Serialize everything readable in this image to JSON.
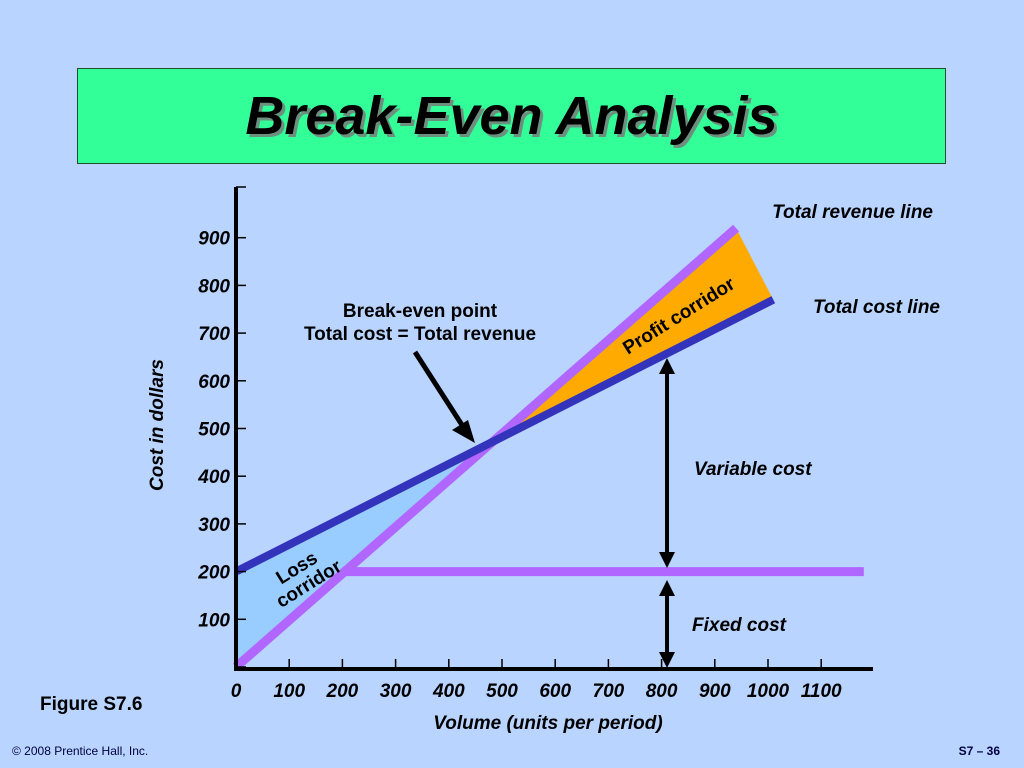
{
  "slide": {
    "title": "Break-Even Analysis",
    "figure_label": "Figure S7.6",
    "copyright": "© 2008 Prentice Hall, Inc.",
    "page_number": "S7 – 36"
  },
  "colors": {
    "background": "#b9d4ff",
    "title_fill": "#33ff99",
    "revenue_line": "#b066ff",
    "cost_line": "#3333bb",
    "fixed_cost_line": "#b066ff",
    "profit_fill": "#ffaa00",
    "loss_fill": "#99ccff"
  },
  "chart_data": {
    "type": "line",
    "xlabel": "Volume (units per period)",
    "ylabel": "Cost in dollars",
    "xlim": [
      0,
      1200
    ],
    "ylim": [
      0,
      1000
    ],
    "x_ticks": [
      "0",
      "100",
      "200",
      "300",
      "400",
      "500",
      "600",
      "700",
      "800",
      "900",
      "1000",
      "1100"
    ],
    "y_ticks": [
      "100",
      "200",
      "300",
      "400",
      "500",
      "600",
      "700",
      "800",
      "900"
    ],
    "series": [
      {
        "name": "Total revenue line",
        "x": [
          0,
          940
        ],
        "y": [
          0,
          920
        ]
      },
      {
        "name": "Total cost line",
        "x": [
          0,
          1010
        ],
        "y": [
          200,
          770
        ]
      },
      {
        "x": [
          200,
          1180
        ],
        "y": [
          200,
          200
        ]
      }
    ],
    "break_even": {
      "x": 460,
      "y": 460
    },
    "annotations": {
      "break_even_line1": "Break-even point",
      "break_even_line2": "Total cost = Total revenue",
      "profit_corridor": "Profit corridor",
      "loss_corridor_line1": "Loss",
      "loss_corridor_line2": "corridor",
      "variable_cost": "Variable cost",
      "fixed_cost": "Fixed cost"
    }
  }
}
